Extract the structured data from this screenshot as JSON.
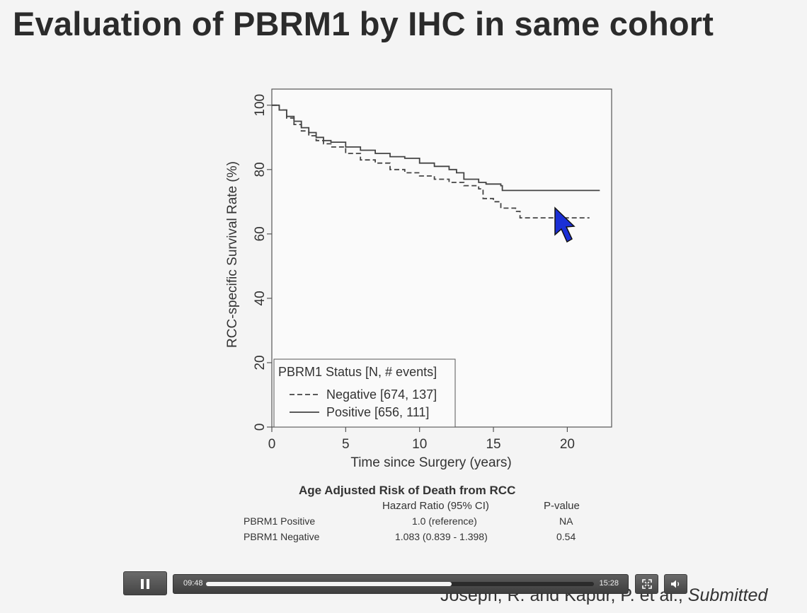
{
  "slide": {
    "title": "Evaluation of PBRM1 by IHC in same cohort",
    "attribution_authors": "Joseph, R. and Kapur, P. et al., ",
    "attribution_status": "Submitted"
  },
  "chart_data": {
    "type": "line",
    "title": "",
    "xlabel": "Time since Surgery (years)",
    "ylabel": "RCC-specific Survival Rate (%)",
    "xlim": [
      0,
      23
    ],
    "ylim": [
      0,
      105
    ],
    "xticks": [
      0,
      5,
      10,
      15,
      20
    ],
    "yticks": [
      0,
      20,
      40,
      60,
      80,
      100
    ],
    "legend": {
      "title": "PBRM1 Status [N, # events]",
      "placement": "bottom-left"
    },
    "series": [
      {
        "name": "Negative [674, 137]",
        "line_style": "dashed",
        "color": "#444444",
        "points": [
          [
            0,
            100
          ],
          [
            0.5,
            98.5
          ],
          [
            1,
            96
          ],
          [
            1.5,
            94
          ],
          [
            2,
            92
          ],
          [
            2.5,
            90.5
          ],
          [
            3,
            89
          ],
          [
            3.5,
            88
          ],
          [
            4,
            87
          ],
          [
            5,
            85
          ],
          [
            6,
            83
          ],
          [
            7,
            82
          ],
          [
            8,
            80
          ],
          [
            9,
            79
          ],
          [
            10,
            78
          ],
          [
            11,
            77
          ],
          [
            12,
            76
          ],
          [
            13,
            75
          ],
          [
            14,
            74
          ],
          [
            14.3,
            71
          ],
          [
            15,
            70
          ],
          [
            15.5,
            68
          ],
          [
            16.5,
            67
          ],
          [
            16.8,
            65
          ],
          [
            21.5,
            65
          ]
        ]
      },
      {
        "name": "Positive [656, 111]",
        "line_style": "solid",
        "color": "#444444",
        "points": [
          [
            0,
            100
          ],
          [
            0.5,
            98.5
          ],
          [
            1,
            96.5
          ],
          [
            1.5,
            95
          ],
          [
            2,
            93
          ],
          [
            2.5,
            91.5
          ],
          [
            3,
            90
          ],
          [
            3.5,
            89
          ],
          [
            4,
            88.5
          ],
          [
            5,
            87
          ],
          [
            6,
            86
          ],
          [
            7,
            85
          ],
          [
            8,
            84
          ],
          [
            9,
            83.5
          ],
          [
            10,
            82
          ],
          [
            11,
            81
          ],
          [
            12,
            80
          ],
          [
            12.5,
            79
          ],
          [
            13,
            77
          ],
          [
            14,
            76
          ],
          [
            14.5,
            75.5
          ],
          [
            15.5,
            75
          ],
          [
            15.6,
            73.5
          ],
          [
            22.2,
            73.5
          ]
        ]
      }
    ]
  },
  "hazard_table": {
    "title": "Age Adjusted Risk of Death from RCC",
    "headers": [
      "Hazard Ratio (95% CI)",
      "P-value"
    ],
    "rows": [
      {
        "label": "PBRM1 Positive",
        "hr": "1.0 (reference)",
        "p": "NA"
      },
      {
        "label": "PBRM1 Negative",
        "hr": "1.083 (0.839 - 1.398)",
        "p": "0.54"
      }
    ]
  },
  "player": {
    "current_time": "09:48",
    "total_time": "15:28",
    "progress_fraction": 0.634,
    "play_state": "playing",
    "play_icon": "pause-icon",
    "fullscreen_icon": "fullscreen-icon",
    "volume_icon": "volume-icon"
  },
  "cursor_icon": "mouse-pointer-icon",
  "cursor_color": "#1a2fd6"
}
